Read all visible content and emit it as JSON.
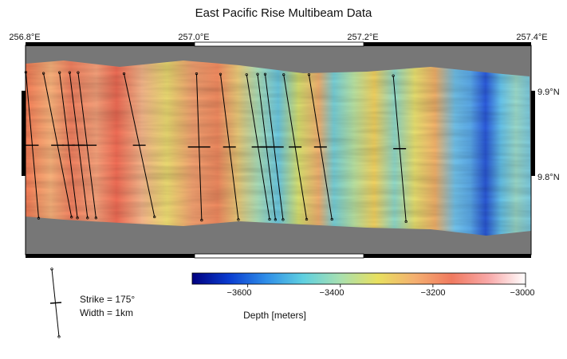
{
  "title": "East Pacific Rise Multibeam Data",
  "axes": {
    "longitude_labels": [
      "256.8°E",
      "257.0°E",
      "257.2°E",
      "257.4°E"
    ],
    "longitude_values": [
      256.8,
      257.0,
      257.2,
      257.4
    ],
    "latitude_labels": [
      "9.9°N",
      "9.8°N"
    ],
    "latitude_values": [
      9.9,
      9.8
    ]
  },
  "colorbar": {
    "label": "Depth [meters]",
    "tick_labels": [
      "−3600",
      "−3400",
      "−3200",
      "−3000"
    ],
    "range": [
      -3720,
      -3000
    ],
    "colormap": [
      "#000080",
      "#0a3cd0",
      "#2f8ee8",
      "#5fd0e0",
      "#a8e0b0",
      "#e8e060",
      "#f4b070",
      "#f07a60",
      "#f8a8a8",
      "#ffffff"
    ]
  },
  "legend": {
    "strike_label": "Strike = 175°",
    "width_label": "Width = 1km"
  },
  "colors": {
    "no_data": "#777777",
    "frame": "#000000",
    "line": "#000000"
  },
  "dike_profiles": [
    {
      "lon": 256.808,
      "lat": 9.836,
      "strike_deg": 175
    },
    {
      "lon": 256.838,
      "lat": 9.836,
      "strike_deg": 169
    },
    {
      "lon": 256.851,
      "lat": 9.836,
      "strike_deg": 173
    },
    {
      "lon": 256.863,
      "lat": 9.836,
      "strike_deg": 173
    },
    {
      "lon": 256.873,
      "lat": 9.836,
      "strike_deg": 173
    },
    {
      "lon": 256.935,
      "lat": 9.836,
      "strike_deg": 168
    },
    {
      "lon": 257.006,
      "lat": 9.834,
      "strike_deg": 178
    },
    {
      "lon": 257.042,
      "lat": 9.834,
      "strike_deg": 173
    },
    {
      "lon": 257.076,
      "lat": 9.834,
      "strike_deg": 171
    },
    {
      "lon": 257.086,
      "lat": 9.834,
      "strike_deg": 173
    },
    {
      "lon": 257.095,
      "lat": 9.834,
      "strike_deg": 173
    },
    {
      "lon": 257.12,
      "lat": 9.834,
      "strike_deg": 171
    },
    {
      "lon": 257.15,
      "lat": 9.834,
      "strike_deg": 171
    },
    {
      "lon": 257.244,
      "lat": 9.832,
      "strike_deg": 175
    }
  ]
}
